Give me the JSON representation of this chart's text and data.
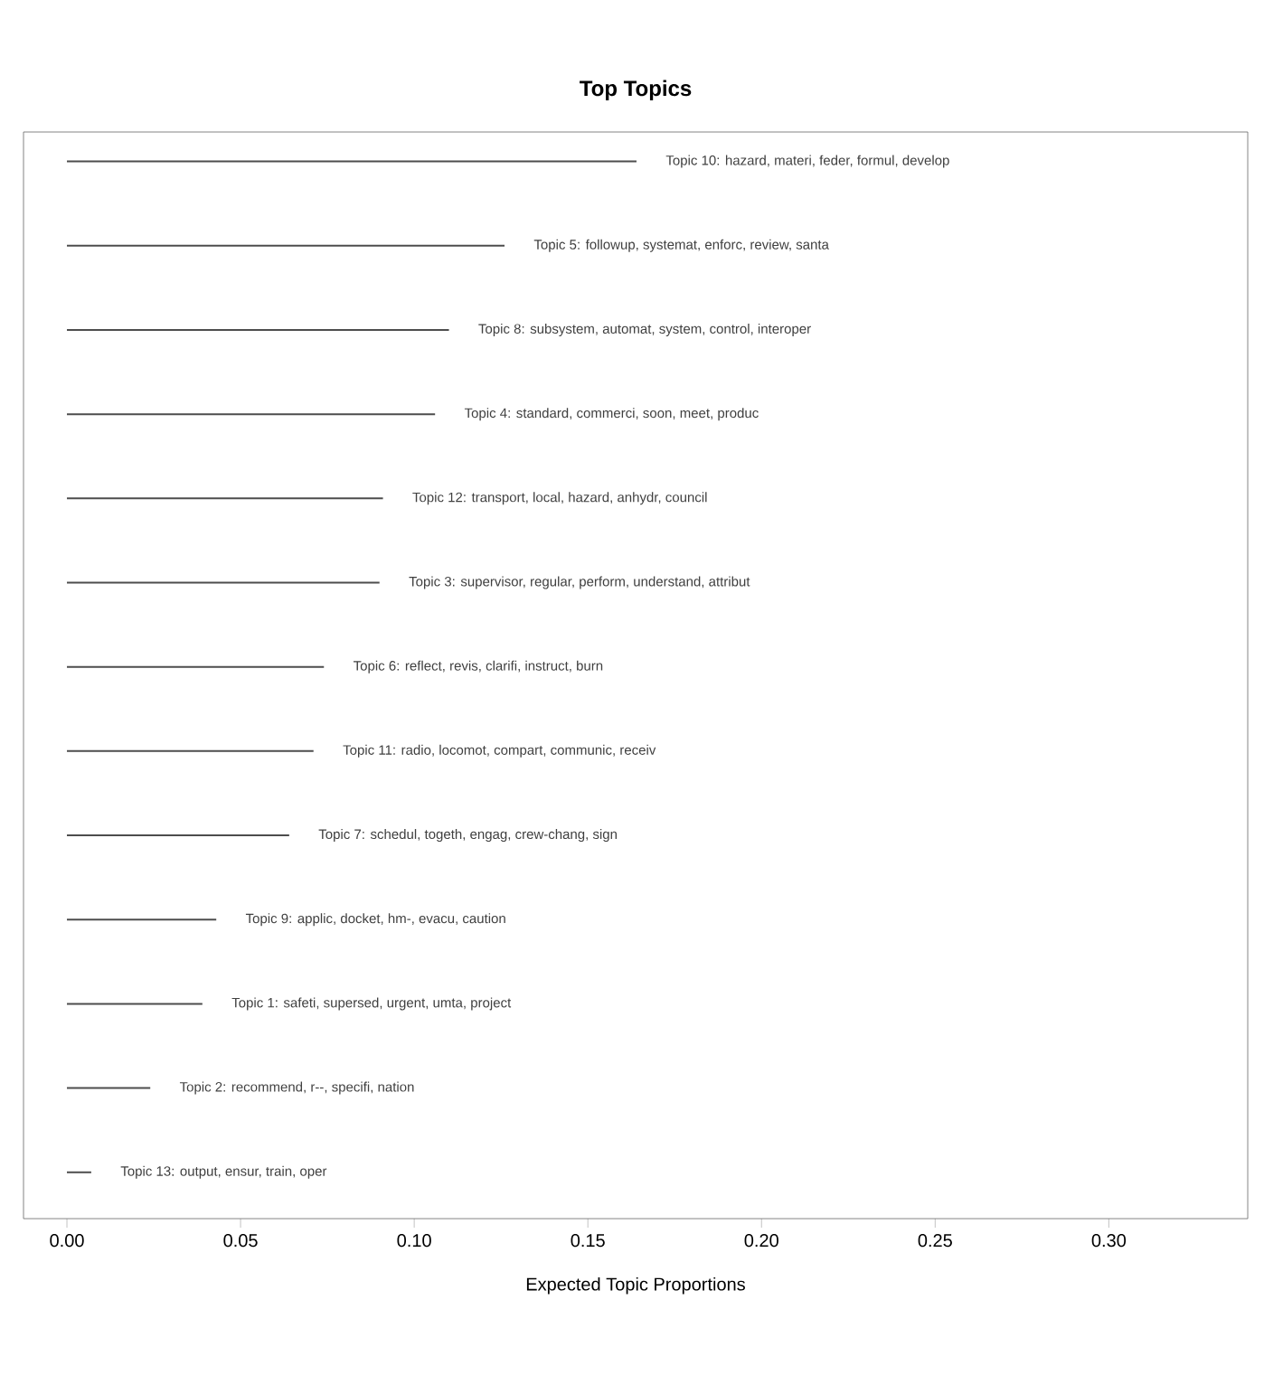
{
  "chart_data": {
    "type": "bar",
    "orientation": "horizontal",
    "title": "Top Topics",
    "xlabel": "Expected Topic Proportions",
    "color": "#4d4d4d",
    "categories": [
      "Topic 10: hazard, materi, feder, formul, develop",
      "Topic 5: followup, systemat, enforc, review, santa",
      "Topic 8: subsystem, automat, system, control, interoper",
      "Topic 4: standard, commerci, soon, meet, produc",
      "Topic 12: transport, local, hazard, anhydr, council",
      "Topic 3: supervisor, regular, perform, understand, attribut",
      "Topic 6: reflect, revis, clarifi, instruct, burn",
      "Topic 11: radio, locomot, compart, communic, receiv",
      "Topic 7: schedul, togeth, engag, crew-chang, sign",
      "Topic 9: applic, docket, hm-, evacu, caution",
      "Topic 1: safeti, supersed, urgent, umta, project",
      "Topic 2: recommend, r--, specifi, nation",
      "Topic 13: output, ensur, train, oper"
    ],
    "values": [
      0.164,
      0.126,
      0.11,
      0.106,
      0.091,
      0.09,
      0.074,
      0.071,
      0.064,
      0.043,
      0.039,
      0.024,
      0.007
    ],
    "xlim": [
      -0.0125,
      0.34
    ],
    "xticks": [
      {
        "value": 0,
        "label": "0.00"
      },
      {
        "value": 0.05,
        "label": "0.05"
      },
      {
        "value": 0.1,
        "label": "0.10"
      },
      {
        "value": 0.15,
        "label": "0.15"
      },
      {
        "value": 0.2,
        "label": "0.20"
      },
      {
        "value": 0.25,
        "label": "0.25"
      },
      {
        "value": 0.3,
        "label": "0.30"
      }
    ],
    "tick_labels": "x",
    "grid": false
  }
}
